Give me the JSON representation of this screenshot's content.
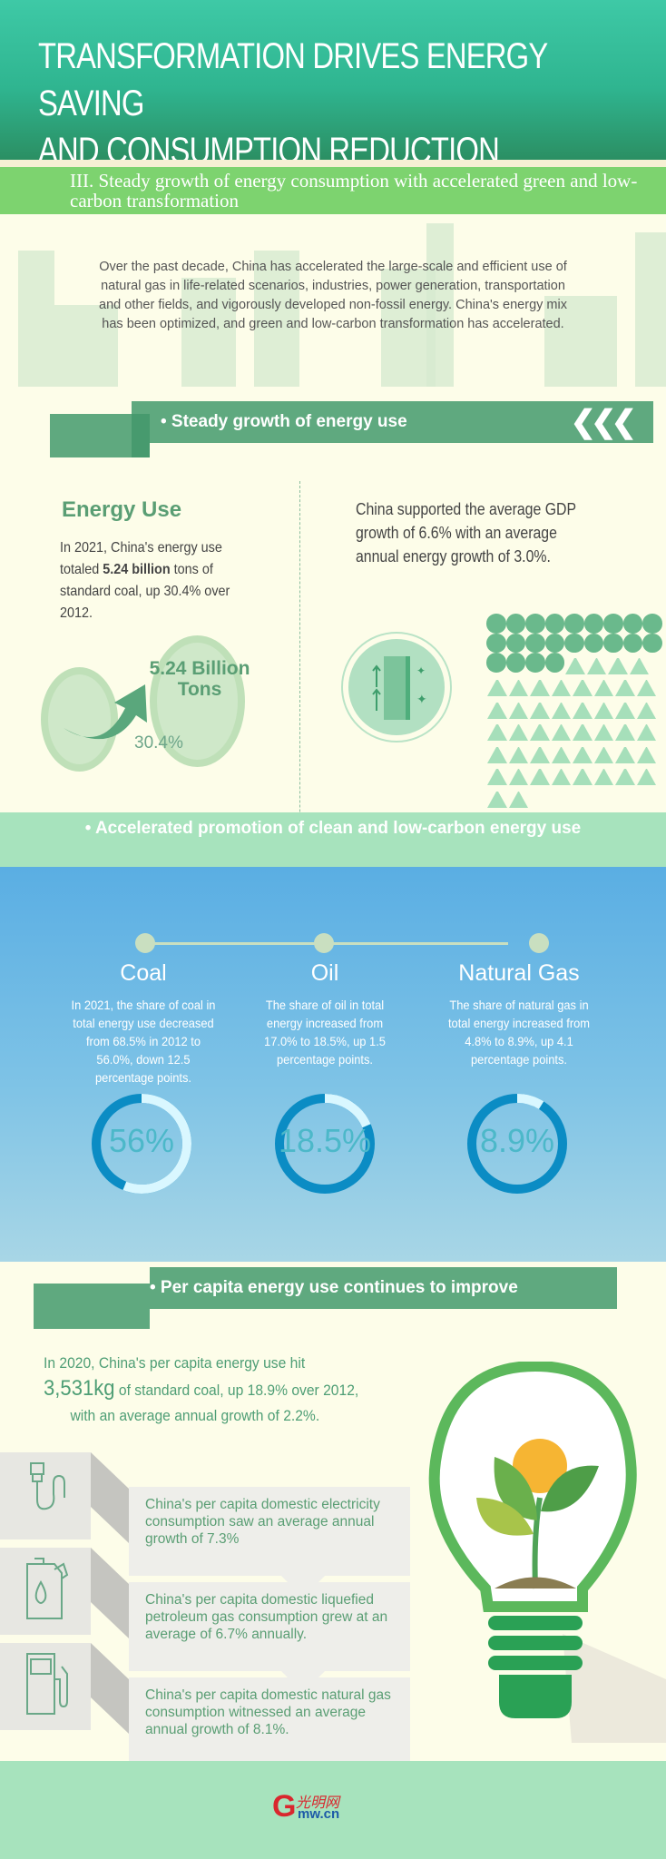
{
  "header": {
    "title_line1": "TRANSFORMATION DRIVES ENERGY SAVING",
    "title_line2": "AND CONSUMPTION REDUCTION"
  },
  "section3": {
    "title": "III. Steady growth of energy consumption with accelerated green and low-carbon transformation",
    "intro": "Over the past decade, China has accelerated the large-scale and efficient use of natural gas in life-related scenarios, industries, power generation, transportation and other fields, and vigorously developed non-fossil energy. China's energy mix has been optimized, and green and low-carbon transformation has accelerated."
  },
  "growth": {
    "heading": "• Steady growth of energy use",
    "chevrons": "❮❮❮",
    "energy_use_title": "Energy Use",
    "energy_use_pre": "In 2021, China's energy use totaled ",
    "energy_use_bold": "5.24 billion",
    "energy_use_post": " tons of standard coal, up 30.4% over 2012.",
    "big_value": "5.24 Billion Tons",
    "increase": "30.4%",
    "gdp_text": "China supported the average GDP growth of 6.6% with an average annual energy growth of 3.0%.",
    "icon_grid": {
      "circles": 22,
      "triangles": 46
    }
  },
  "clean": {
    "heading": "• Accelerated promotion of clean and low-carbon energy use",
    "items": [
      {
        "name": "Coal",
        "text": "In 2021, the share of coal in total energy use decreased from 68.5% in 2012 to 56.0%, down 12.5 percentage points.",
        "value": "56%",
        "share": 56
      },
      {
        "name": "Oil",
        "text": "The share of oil in total energy increased from 17.0% to 18.5%, up 1.5 percentage points.",
        "value": "18.5%",
        "share": 18.5
      },
      {
        "name": "Natural Gas",
        "text": "The share of natural gas in total energy increased from 4.8% to 8.9%, up 4.1 percentage points.",
        "value": "8.9%",
        "share": 8.9
      }
    ]
  },
  "per_capita": {
    "heading": "• Per capita energy use continues to improve",
    "line1": "In 2020, China's per capita energy use hit",
    "value": "3,531kg",
    "line2": " of standard coal, up 18.9% over 2012,",
    "line3": "with an average annual growth of 2.2%.",
    "items": [
      {
        "icon": "power-plug-icon",
        "text": "China's per capita domestic electricity consumption saw an average annual growth of 7.3%"
      },
      {
        "icon": "oil-can-icon",
        "text": "China's per capita domestic liquefied petroleum gas consumption grew at an average of 6.7% annually."
      },
      {
        "icon": "gas-pump-icon",
        "text": "China's per capita domestic natural gas consumption witnessed an average annual growth of 8.1%."
      }
    ]
  },
  "footer": {
    "logo": "光明网 Gmw.cn"
  },
  "colors": {
    "accent_green": "#5fa97f",
    "bar_green": "#7dd36f",
    "donut_blue": "#0b8cc4",
    "donut_light": "#d9f7ff"
  }
}
